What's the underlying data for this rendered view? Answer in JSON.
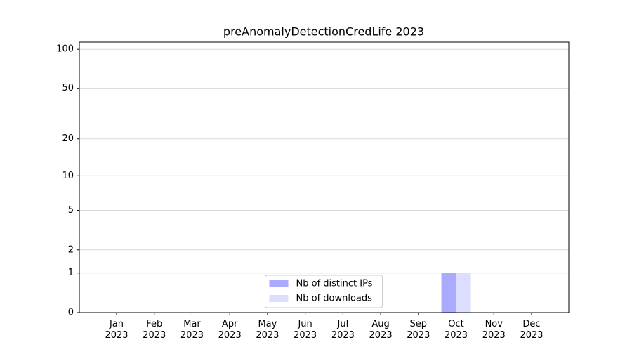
{
  "chart_data": {
    "type": "bar",
    "title": "preAnomalyDetectionCredLife 2023",
    "categories": [
      "Jan 2023",
      "Feb 2023",
      "Mar 2023",
      "Apr 2023",
      "May 2023",
      "Jun 2023",
      "Jul 2023",
      "Aug 2023",
      "Sep 2023",
      "Oct 2023",
      "Nov 2023",
      "Dec 2023"
    ],
    "series": [
      {
        "name": "Nb of distinct IPs",
        "color": "#aaaaff",
        "values": [
          0,
          0,
          0,
          0,
          0,
          0,
          0,
          0,
          0,
          1,
          0,
          0
        ]
      },
      {
        "name": "Nb of downloads",
        "color": "#ddddff",
        "values": [
          0,
          0,
          0,
          0,
          0,
          0,
          0,
          0,
          0,
          1,
          0,
          0
        ]
      }
    ],
    "yscale": "log1p",
    "ylim": [
      0,
      113.5
    ],
    "yticks": [
      0,
      1,
      2,
      5,
      10,
      20,
      50,
      100
    ],
    "grid": true,
    "legend": "lower center"
  }
}
